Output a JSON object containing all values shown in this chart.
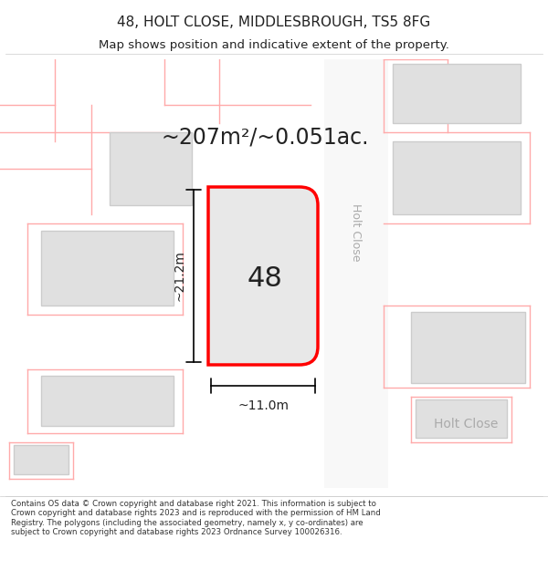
{
  "title_line1": "48, HOLT CLOSE, MIDDLESBROUGH, TS5 8FG",
  "title_line2": "Map shows position and indicative extent of the property.",
  "area_text": "~207m²/~0.051ac.",
  "label_48": "48",
  "label_height": "~21.2m",
  "label_width": "~11.0m",
  "street_label_v": "Holt Close",
  "street_label_h": "Holt Close",
  "footer_text": "Contains OS data © Crown copyright and database right 2021. This information is subject to Crown copyright and database rights 2023 and is reproduced with the permission of HM Land Registry. The polygons (including the associated geometry, namely x, y co-ordinates) are subject to Crown copyright and database rights 2023 Ordnance Survey 100026316.",
  "bg_color": "#ffffff",
  "map_bg": "#f5f5f5",
  "plot_outline_color": "#ff0000",
  "plot_fill": "#e8e8e8",
  "pink_line_color": "#ffaaaa",
  "dim_line_color": "#000000",
  "text_color_dark": "#222222",
  "text_color_gray": "#aaaaaa"
}
